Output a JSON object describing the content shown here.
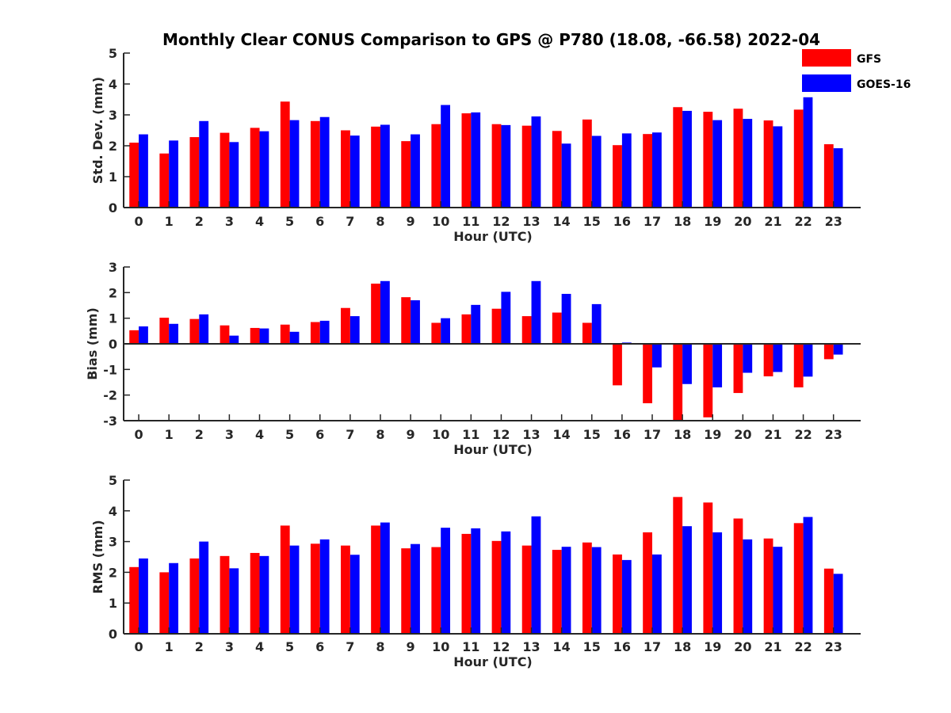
{
  "figure": {
    "title": "Monthly Clear CONUS Comparison to GPS @ P780 (18.08, -66.58) 2022-04",
    "legend": {
      "placement": "top-right",
      "entries": [
        {
          "name": "GFS",
          "color": "#ff0000"
        },
        {
          "name": "GOES-16",
          "color": "#0000ff"
        }
      ]
    }
  },
  "chart_data": [
    {
      "type": "bar",
      "xlabel": "Hour (UTC)",
      "ylabel": "Std. Dev. (mm)",
      "ylim": [
        0,
        5
      ],
      "yticks": [
        0,
        1,
        2,
        3,
        4,
        5
      ],
      "categories": [
        "0",
        "1",
        "2",
        "3",
        "4",
        "5",
        "6",
        "7",
        "8",
        "9",
        "10",
        "11",
        "12",
        "13",
        "14",
        "15",
        "16",
        "17",
        "18",
        "19",
        "20",
        "21",
        "22",
        "23"
      ],
      "series": [
        {
          "name": "GFS",
          "color": "#ff0000",
          "values": [
            2.1,
            1.75,
            2.28,
            2.42,
            2.58,
            3.43,
            2.8,
            2.5,
            2.62,
            2.15,
            2.7,
            3.05,
            2.7,
            2.65,
            2.48,
            2.85,
            2.02,
            2.38,
            3.25,
            3.1,
            3.2,
            2.82,
            3.17,
            2.05
          ]
        },
        {
          "name": "GOES-16",
          "color": "#0000ff",
          "values": [
            2.37,
            2.17,
            2.8,
            2.12,
            2.47,
            2.83,
            2.93,
            2.33,
            2.68,
            2.37,
            3.32,
            3.08,
            2.67,
            2.95,
            2.07,
            2.32,
            2.4,
            2.43,
            3.13,
            2.83,
            2.87,
            2.63,
            3.57,
            1.92
          ]
        }
      ]
    },
    {
      "type": "bar",
      "xlabel": "Hour (UTC)",
      "ylabel": "Bias (mm)",
      "ylim": [
        -3,
        3
      ],
      "yticks": [
        -3,
        -2,
        -1,
        0,
        1,
        2,
        3
      ],
      "categories": [
        "0",
        "1",
        "2",
        "3",
        "4",
        "5",
        "6",
        "7",
        "8",
        "9",
        "10",
        "11",
        "12",
        "13",
        "14",
        "15",
        "16",
        "17",
        "18",
        "19",
        "20",
        "21",
        "22",
        "23"
      ],
      "series": [
        {
          "name": "GFS",
          "color": "#ff0000",
          "values": [
            0.53,
            1.02,
            0.97,
            0.72,
            0.62,
            0.75,
            0.85,
            1.4,
            2.35,
            1.82,
            0.82,
            1.15,
            1.37,
            1.08,
            1.22,
            0.82,
            -1.62,
            -2.32,
            -3.0,
            -2.87,
            -1.92,
            -1.27,
            -1.7,
            -0.6
          ]
        },
        {
          "name": "GOES-16",
          "color": "#0000ff",
          "values": [
            0.68,
            0.78,
            1.15,
            0.32,
            0.6,
            0.47,
            0.9,
            1.08,
            2.45,
            1.7,
            1.0,
            1.52,
            2.03,
            2.45,
            1.95,
            1.55,
            0.05,
            -0.92,
            -1.57,
            -1.7,
            -1.13,
            -1.1,
            -1.28,
            -0.42
          ]
        }
      ]
    },
    {
      "type": "bar",
      "xlabel": "Hour (UTC)",
      "ylabel": "RMS (mm)",
      "ylim": [
        0,
        5
      ],
      "yticks": [
        0,
        1,
        2,
        3,
        4,
        5
      ],
      "categories": [
        "0",
        "1",
        "2",
        "3",
        "4",
        "5",
        "6",
        "7",
        "8",
        "9",
        "10",
        "11",
        "12",
        "13",
        "14",
        "15",
        "16",
        "17",
        "18",
        "19",
        "20",
        "21",
        "22",
        "23"
      ],
      "series": [
        {
          "name": "GFS",
          "color": "#ff0000",
          "values": [
            2.17,
            2.0,
            2.45,
            2.53,
            2.63,
            3.52,
            2.93,
            2.87,
            3.52,
            2.78,
            2.82,
            3.25,
            3.02,
            2.87,
            2.73,
            2.97,
            2.58,
            3.3,
            4.45,
            4.27,
            3.75,
            3.1,
            3.6,
            2.12
          ]
        },
        {
          "name": "GOES-16",
          "color": "#0000ff",
          "values": [
            2.45,
            2.3,
            3.0,
            2.13,
            2.53,
            2.87,
            3.07,
            2.57,
            3.62,
            2.92,
            3.45,
            3.43,
            3.33,
            3.82,
            2.83,
            2.82,
            2.4,
            2.58,
            3.5,
            3.3,
            3.07,
            2.83,
            3.8,
            1.95
          ]
        }
      ]
    }
  ]
}
